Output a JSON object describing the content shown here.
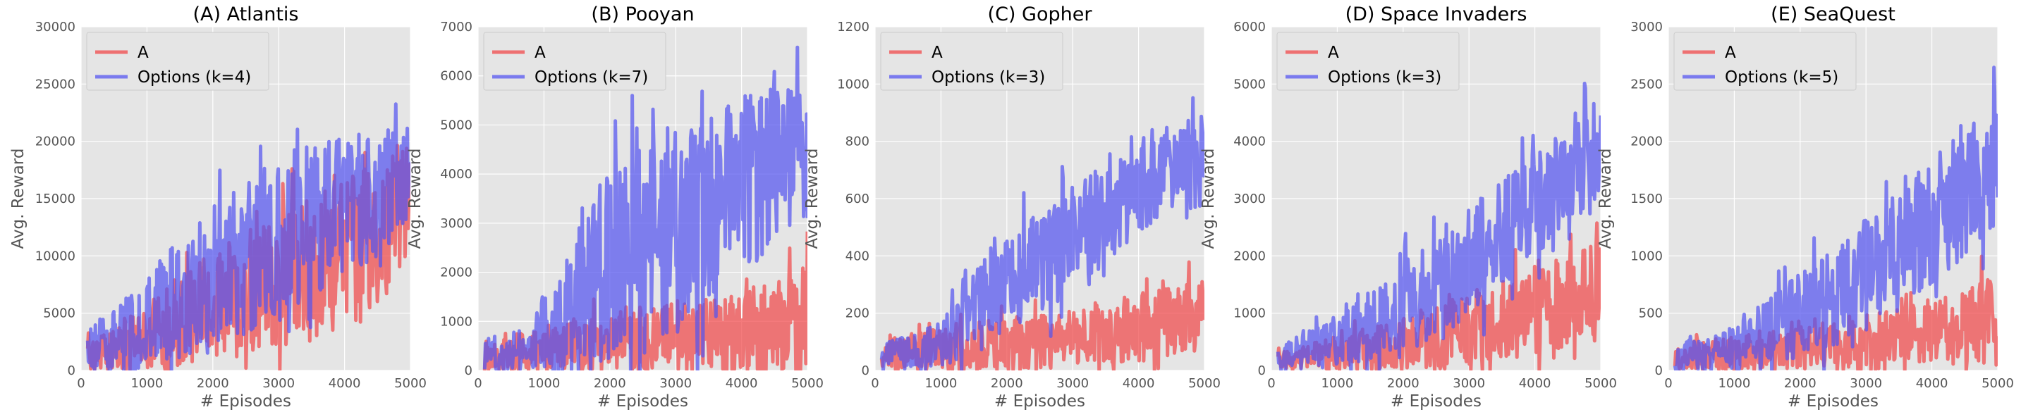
{
  "chart_data": [
    {
      "type": "line",
      "title": "(A) Atlantis",
      "xlabel": "# Episodes",
      "ylabel": "Avg. Reward",
      "xlim": [
        0,
        5000
      ],
      "ylim": [
        0,
        30000
      ],
      "x_ticks": [
        0,
        1000,
        2000,
        3000,
        4000,
        5000
      ],
      "y_ticks": [
        0,
        5000,
        10000,
        15000,
        20000,
        25000,
        30000
      ],
      "grid": true,
      "legend": "top-left",
      "series": [
        {
          "name": "A",
          "color": "#f0484a",
          "x": [
            100,
            400,
            700,
            1000,
            1300,
            1600,
            1900,
            2200,
            2500,
            2800,
            3100,
            3400,
            3700,
            4000,
            4300,
            4600,
            4900,
            5000
          ],
          "values": [
            1500,
            1800,
            2200,
            3000,
            3800,
            4500,
            5500,
            6000,
            6800,
            7500,
            8000,
            8800,
            9500,
            10500,
            11000,
            12500,
            14000,
            13500
          ],
          "spread": [
            1500,
            1800,
            2500,
            3000,
            3500,
            4000,
            4500,
            5000,
            5500,
            5500,
            6000,
            6000,
            6500,
            6500,
            7000,
            6500,
            6000,
            6000
          ]
        },
        {
          "name": "Options (k=4)",
          "color": "#5555f0",
          "x": [
            100,
            400,
            700,
            1000,
            1300,
            1600,
            1900,
            2200,
            2500,
            2800,
            3100,
            3400,
            3700,
            4000,
            4300,
            4600,
            4900,
            5000
          ],
          "values": [
            2000,
            2500,
            3000,
            4000,
            5500,
            6500,
            8000,
            9000,
            10000,
            11000,
            11500,
            12500,
            13500,
            14500,
            15000,
            16000,
            17000,
            17500
          ],
          "spread": [
            2000,
            2500,
            3500,
            4000,
            5000,
            5500,
            6000,
            6500,
            7000,
            7000,
            7000,
            7000,
            6500,
            6000,
            5500,
            4500,
            4000,
            4000
          ]
        }
      ]
    },
    {
      "type": "line",
      "title": "(B) Pooyan",
      "xlabel": "# Episodes",
      "ylabel": "Avg. Reward",
      "xlim": [
        0,
        5000
      ],
      "ylim": [
        0,
        7000
      ],
      "x_ticks": [
        0,
        1000,
        2000,
        3000,
        4000,
        5000
      ],
      "y_ticks": [
        0,
        1000,
        2000,
        3000,
        4000,
        5000,
        6000,
        7000
      ],
      "grid": true,
      "legend": "top-left",
      "series": [
        {
          "name": "A",
          "color": "#f0484a",
          "x": [
            100,
            400,
            700,
            1000,
            1300,
            1600,
            1900,
            2200,
            2500,
            2800,
            3100,
            3400,
            3700,
            4000,
            4300,
            4600,
            4900,
            5000
          ],
          "values": [
            300,
            350,
            400,
            450,
            500,
            550,
            550,
            600,
            600,
            650,
            650,
            700,
            750,
            800,
            850,
            900,
            950,
            950
          ],
          "spread": [
            300,
            350,
            400,
            450,
            500,
            550,
            600,
            650,
            700,
            700,
            750,
            800,
            800,
            850,
            900,
            1000,
            1200,
            1200
          ]
        },
        {
          "name": "Options (k=7)",
          "color": "#5555f0",
          "x": [
            100,
            400,
            700,
            1000,
            1300,
            1600,
            1900,
            2200,
            2500,
            2800,
            3100,
            3400,
            3700,
            4000,
            4300,
            4600,
            4900,
            5000
          ],
          "values": [
            300,
            400,
            500,
            700,
            1000,
            1500,
            2000,
            2300,
            2500,
            2800,
            3000,
            3200,
            3500,
            3800,
            4000,
            4300,
            4500,
            4500
          ],
          "spread": [
            300,
            400,
            500,
            800,
            1200,
            1600,
            1900,
            2000,
            2100,
            2100,
            2100,
            2000,
            1900,
            1800,
            1700,
            1500,
            1400,
            1400
          ]
        }
      ]
    },
    {
      "type": "line",
      "title": "(C) Gopher",
      "xlabel": "# Episodes",
      "ylabel": "Avg. Reward",
      "xlim": [
        0,
        5000
      ],
      "ylim": [
        0,
        1200
      ],
      "x_ticks": [
        0,
        1000,
        2000,
        3000,
        4000,
        5000
      ],
      "y_ticks": [
        0,
        200,
        400,
        600,
        800,
        1000,
        1200
      ],
      "grid": true,
      "legend": "top-left",
      "series": [
        {
          "name": "A",
          "color": "#f0484a",
          "x": [
            100,
            400,
            700,
            1000,
            1300,
            1600,
            1900,
            2200,
            2500,
            2800,
            3100,
            3400,
            3700,
            4000,
            4300,
            4600,
            4900,
            5000
          ],
          "values": [
            50,
            60,
            70,
            75,
            80,
            85,
            90,
            95,
            100,
            110,
            120,
            130,
            140,
            150,
            160,
            180,
            200,
            200
          ],
          "spread": [
            50,
            60,
            70,
            75,
            80,
            85,
            90,
            95,
            100,
            100,
            100,
            110,
            110,
            120,
            120,
            120,
            120,
            120
          ]
        },
        {
          "name": "Options (k=3)",
          "color": "#5555f0",
          "x": [
            100,
            400,
            700,
            1000,
            1300,
            1600,
            1900,
            2200,
            2500,
            2800,
            3100,
            3400,
            3700,
            4000,
            4300,
            4600,
            4900,
            5000
          ],
          "values": [
            50,
            60,
            70,
            90,
            150,
            220,
            280,
            330,
            380,
            430,
            480,
            530,
            580,
            630,
            680,
            720,
            770,
            780
          ],
          "spread": [
            50,
            60,
            70,
            80,
            120,
            150,
            170,
            180,
            190,
            190,
            190,
            180,
            170,
            160,
            150,
            140,
            130,
            130
          ]
        }
      ]
    },
    {
      "type": "line",
      "title": "(D) Space Invaders",
      "xlabel": "# Episodes",
      "ylabel": "Avg. Reward",
      "xlim": [
        0,
        5000
      ],
      "ylim": [
        0,
        6000
      ],
      "x_ticks": [
        0,
        1000,
        2000,
        3000,
        4000,
        5000
      ],
      "y_ticks": [
        0,
        1000,
        2000,
        3000,
        4000,
        5000,
        6000
      ],
      "grid": true,
      "legend": "top-left",
      "series": [
        {
          "name": "A",
          "color": "#f0484a",
          "x": [
            100,
            400,
            700,
            1000,
            1300,
            1600,
            1900,
            2200,
            2500,
            2800,
            3100,
            3400,
            3700,
            4000,
            4300,
            4600,
            4900,
            5000
          ],
          "values": [
            150,
            200,
            250,
            300,
            350,
            400,
            450,
            500,
            550,
            650,
            750,
            850,
            950,
            1050,
            1150,
            1250,
            1350,
            1350
          ],
          "spread": [
            150,
            200,
            250,
            300,
            350,
            400,
            450,
            500,
            550,
            600,
            650,
            700,
            750,
            800,
            800,
            850,
            850,
            850
          ]
        },
        {
          "name": "Options (k=3)",
          "color": "#5555f0",
          "x": [
            100,
            400,
            700,
            1000,
            1300,
            1600,
            1900,
            2200,
            2500,
            2800,
            3100,
            3400,
            3700,
            4000,
            4300,
            4600,
            4900,
            5000
          ],
          "values": [
            200,
            300,
            400,
            550,
            700,
            850,
            1000,
            1200,
            1400,
            1700,
            2000,
            2300,
            2600,
            2900,
            3200,
            3500,
            3800,
            3900
          ],
          "spread": [
            200,
            300,
            400,
            500,
            600,
            700,
            800,
            850,
            900,
            950,
            950,
            950,
            950,
            900,
            900,
            850,
            850,
            850
          ]
        }
      ]
    },
    {
      "type": "line",
      "title": "(E) SeaQuest",
      "xlabel": "# Episodes",
      "ylabel": "Avg. Reward",
      "xlim": [
        0,
        5000
      ],
      "ylim": [
        0,
        3000
      ],
      "x_ticks": [
        0,
        1000,
        2000,
        3000,
        4000,
        5000
      ],
      "y_ticks": [
        0,
        500,
        1000,
        1500,
        2000,
        2500,
        3000
      ],
      "grid": true,
      "legend": "top-left",
      "series": [
        {
          "name": "A",
          "color": "#f0484a",
          "x": [
            100,
            400,
            700,
            1000,
            1300,
            1600,
            1900,
            2200,
            2500,
            2800,
            3100,
            3400,
            3700,
            4000,
            4300,
            4600,
            4900,
            5000
          ],
          "values": [
            100,
            120,
            140,
            150,
            160,
            170,
            180,
            200,
            220,
            240,
            260,
            280,
            300,
            330,
            360,
            390,
            420,
            430
          ],
          "spread": [
            100,
            120,
            140,
            150,
            160,
            170,
            180,
            200,
            220,
            240,
            260,
            280,
            300,
            320,
            340,
            360,
            380,
            380
          ]
        },
        {
          "name": "Options (k=5)",
          "color": "#5555f0",
          "x": [
            100,
            400,
            700,
            1000,
            1300,
            1600,
            1900,
            2200,
            2500,
            2800,
            3100,
            3400,
            3700,
            4000,
            4300,
            4600,
            4900,
            5000
          ],
          "values": [
            100,
            130,
            160,
            200,
            280,
            360,
            450,
            550,
            650,
            750,
            880,
            1000,
            1150,
            1300,
            1450,
            1600,
            1750,
            1800
          ],
          "spread": [
            100,
            130,
            160,
            200,
            250,
            300,
            350,
            400,
            450,
            480,
            500,
            520,
            540,
            550,
            550,
            550,
            550,
            550
          ]
        }
      ]
    }
  ]
}
